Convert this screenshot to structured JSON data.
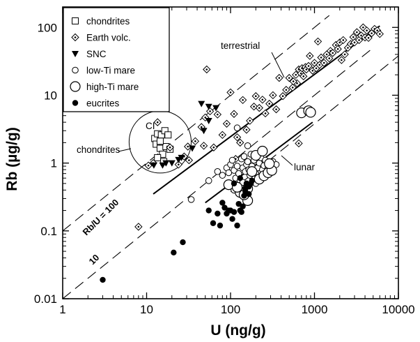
{
  "chart_data": {
    "type": "scatter",
    "xlabel": "U (ng/g)",
    "ylabel": "Rb (µg/g)",
    "xscale": "log",
    "yscale": "log",
    "xlim": [
      1,
      10000
    ],
    "ylim": [
      0.01,
      200
    ],
    "xticks": [
      {
        "value": 1,
        "label": "1"
      },
      {
        "value": 10,
        "label": "10"
      },
      {
        "value": 100,
        "label": "100"
      },
      {
        "value": 1000,
        "label": "1000"
      },
      {
        "value": 10000,
        "label": "10000"
      }
    ],
    "yticks": [
      {
        "value": 0.01,
        "label": "0.01"
      },
      {
        "value": 0.1,
        "label": "0.1"
      },
      {
        "value": 1,
        "label": "1"
      },
      {
        "value": 10,
        "label": "10"
      },
      {
        "value": 100,
        "label": "100"
      }
    ],
    "legend": {
      "position": "top-left"
    },
    "series": [
      {
        "name": "chondrites",
        "marker": "open-square",
        "points": [
          [
            12.5,
            2.3
          ],
          [
            13.5,
            2.7
          ],
          [
            15,
            2.6
          ],
          [
            16.5,
            3
          ],
          [
            18,
            2.6
          ],
          [
            13,
            1.9
          ],
          [
            14.5,
            1.65
          ],
          [
            17,
            1.75
          ],
          [
            15.5,
            1.35
          ],
          [
            13.5,
            1.2
          ],
          [
            16,
            1.05
          ],
          [
            19,
            1.6
          ],
          [
            14.5,
            2.1
          ]
        ]
      },
      {
        "name": "Earth volc.",
        "marker": "open-diamond-dot",
        "points": [
          [
            8,
            0.115
          ],
          [
            10.5,
            0.92
          ],
          [
            12,
            1.0
          ],
          [
            13.5,
            4.0
          ],
          [
            19,
            1.7
          ],
          [
            24,
            0.95
          ],
          [
            28,
            1.25
          ],
          [
            31,
            1.75
          ],
          [
            32,
            1.1
          ],
          [
            38,
            2.1
          ],
          [
            45,
            3.4
          ],
          [
            50,
            4.7
          ],
          [
            52,
            24
          ],
          [
            48,
            1.8
          ],
          [
            57,
            5.8
          ],
          [
            63,
            1.7
          ],
          [
            70,
            5.2
          ],
          [
            80,
            2.6
          ],
          [
            90,
            3.8
          ],
          [
            100,
            11
          ],
          [
            110,
            5.3
          ],
          [
            120,
            2.4
          ],
          [
            140,
            8.5
          ],
          [
            155,
            3.1
          ],
          [
            170,
            4.2
          ],
          [
            190,
            6.8
          ],
          [
            200,
            9.7
          ],
          [
            220,
            6.5
          ],
          [
            240,
            8.6
          ],
          [
            260,
            5.4
          ],
          [
            290,
            7.5
          ],
          [
            320,
            10
          ],
          [
            350,
            6.2
          ],
          [
            380,
            18
          ],
          [
            420,
            9.7
          ],
          [
            460,
            12
          ],
          [
            500,
            18
          ],
          [
            550,
            13
          ],
          [
            600,
            20
          ],
          [
            620,
            15
          ],
          [
            650,
            24
          ],
          [
            690,
            21
          ],
          [
            710,
            25
          ],
          [
            740,
            19
          ],
          [
            780,
            26
          ],
          [
            800,
            24
          ],
          [
            850,
            27
          ],
          [
            880,
            38
          ],
          [
            950,
            23
          ],
          [
            1000,
            30
          ],
          [
            1050,
            25
          ],
          [
            1100,
            62
          ],
          [
            1150,
            28
          ],
          [
            1200,
            36
          ],
          [
            1300,
            30
          ],
          [
            1400,
            40
          ],
          [
            1500,
            35
          ],
          [
            1550,
            45
          ],
          [
            1650,
            42
          ],
          [
            1800,
            55
          ],
          [
            1900,
            48
          ],
          [
            2000,
            60
          ],
          [
            2100,
            33
          ],
          [
            2200,
            65
          ],
          [
            2300,
            40
          ],
          [
            2500,
            50
          ],
          [
            2700,
            57
          ],
          [
            2900,
            72
          ],
          [
            3000,
            60
          ],
          [
            3200,
            85
          ],
          [
            3400,
            65
          ],
          [
            3600,
            76
          ],
          [
            3800,
            100
          ],
          [
            4000,
            71
          ],
          [
            4200,
            90
          ],
          [
            4400,
            70
          ],
          [
            4800,
            82
          ],
          [
            5200,
            95
          ],
          [
            5600,
            90
          ],
          [
            6000,
            80
          ],
          [
            650,
            1.95
          ],
          [
            130,
            2.0
          ],
          [
            115,
            1.15
          ],
          [
            780,
            6.0
          ],
          [
            560,
            16
          ]
        ]
      },
      {
        "name": "SNC",
        "marker": "filled-triangle-down",
        "points": [
          [
            45,
            7.5
          ],
          [
            55,
            6.8
          ],
          [
            67,
            6.5
          ],
          [
            55,
            4.2
          ],
          [
            48,
            3.0
          ],
          [
            35,
            1.65
          ],
          [
            26,
            1.2
          ],
          [
            24,
            1.12
          ],
          [
            20,
            1.0
          ],
          [
            15.5,
            0.93
          ],
          [
            12.2,
            0.93
          ],
          [
            17,
            1.0
          ]
        ]
      },
      {
        "name": "low-Ti mare",
        "marker": "open-circle-small",
        "points": [
          [
            34,
            0.29
          ],
          [
            55,
            0.55
          ],
          [
            70,
            0.75
          ],
          [
            80,
            0.66
          ],
          [
            90,
            0.85
          ],
          [
            95,
            0.72
          ],
          [
            100,
            0.95
          ],
          [
            105,
            1.1
          ],
          [
            110,
            0.78
          ],
          [
            115,
            0.6
          ],
          [
            120,
            0.9
          ],
          [
            125,
            0.7
          ],
          [
            130,
            0.55
          ],
          [
            135,
            1.15
          ],
          [
            140,
            0.85
          ],
          [
            145,
            1.25
          ],
          [
            150,
            0.75
          ],
          [
            155,
            0.95
          ],
          [
            160,
            1.05
          ],
          [
            165,
            0.8
          ],
          [
            170,
            0.66
          ],
          [
            175,
            1.35
          ],
          [
            180,
            0.9
          ],
          [
            185,
            0.75
          ],
          [
            190,
            1.1
          ],
          [
            200,
            0.7
          ],
          [
            210,
            0.85
          ],
          [
            220,
            1.0
          ],
          [
            230,
            1.2
          ],
          [
            240,
            0.8
          ],
          [
            250,
            0.92
          ],
          [
            260,
            1.1
          ],
          [
            270,
            0.7
          ],
          [
            280,
            0.85
          ],
          [
            300,
            0.9
          ],
          [
            320,
            1.05
          ],
          [
            350,
            0.95
          ],
          [
            110,
            0.4
          ],
          [
            140,
            0.52
          ],
          [
            200,
            0.5
          ],
          [
            120,
            3.3
          ],
          [
            160,
            1.8
          ]
        ]
      },
      {
        "name": "high-Ti mare",
        "marker": "open-circle-large",
        "points": [
          [
            95,
            0.48
          ],
          [
            130,
            0.37
          ],
          [
            160,
            0.42
          ],
          [
            160,
            0.28
          ],
          [
            145,
            0.34
          ],
          [
            220,
            0.58
          ],
          [
            250,
            0.65
          ],
          [
            280,
            0.72
          ],
          [
            310,
            0.78
          ],
          [
            200,
            1.3
          ],
          [
            240,
            1.5
          ],
          [
            290,
            0.98
          ],
          [
            700,
            5.5
          ],
          [
            850,
            5.9
          ],
          [
            900,
            5.6
          ],
          [
            120,
            0.44
          ],
          [
            180,
            0.75
          ]
        ]
      },
      {
        "name": "eucrites",
        "marker": "filled-circle",
        "points": [
          [
            3,
            0.019
          ],
          [
            21,
            0.048
          ],
          [
            27,
            0.068
          ],
          [
            55,
            0.2
          ],
          [
            62,
            0.13
          ],
          [
            70,
            0.18
          ],
          [
            75,
            0.12
          ],
          [
            80,
            0.26
          ],
          [
            85,
            0.22
          ],
          [
            90,
            0.18
          ],
          [
            95,
            0.2
          ],
          [
            100,
            0.2
          ],
          [
            105,
            0.15
          ],
          [
            110,
            0.19
          ],
          [
            120,
            0.12
          ],
          [
            125,
            0.25
          ],
          [
            130,
            0.2
          ],
          [
            135,
            0.19
          ],
          [
            140,
            0.23
          ],
          [
            145,
            0.33
          ],
          [
            150,
            0.38
          ],
          [
            155,
            0.5
          ],
          [
            165,
            0.45
          ],
          [
            175,
            0.5
          ],
          [
            180,
            0.55
          ],
          [
            110,
            0.5
          ],
          [
            130,
            0.6
          ],
          [
            150,
            0.42
          ],
          [
            165,
            0.35
          ]
        ]
      }
    ],
    "reference_lines": [
      {
        "points": [
          [
            1,
            0.01
          ],
          [
            5000,
            50
          ]
        ],
        "style": "dashed"
      },
      {
        "points": [
          [
            1,
            0.1
          ],
          [
            1500,
            150
          ]
        ],
        "style": "dashed"
      },
      {
        "points": [
          [
            100,
            0.38
          ],
          [
            10000,
            38
          ]
        ],
        "style": "dashed"
      }
    ],
    "trend_lines": [
      {
        "label": "terrestrial",
        "points": [
          [
            12,
            0.35
          ],
          [
            6000,
            105
          ]
        ]
      },
      {
        "label": "lunar",
        "points": [
          [
            50,
            0.26
          ],
          [
            950,
            4.0
          ]
        ]
      }
    ],
    "annotations": {
      "terrestrial": "terrestrial",
      "lunar": "lunar",
      "ci": "CI",
      "chondrites": "chondrites",
      "rb_u_100": "Rb/U = 100",
      "ten": "10"
    },
    "ci_group": {
      "center": [
        14.5,
        2.05
      ],
      "radius_decades": 0.37
    }
  }
}
